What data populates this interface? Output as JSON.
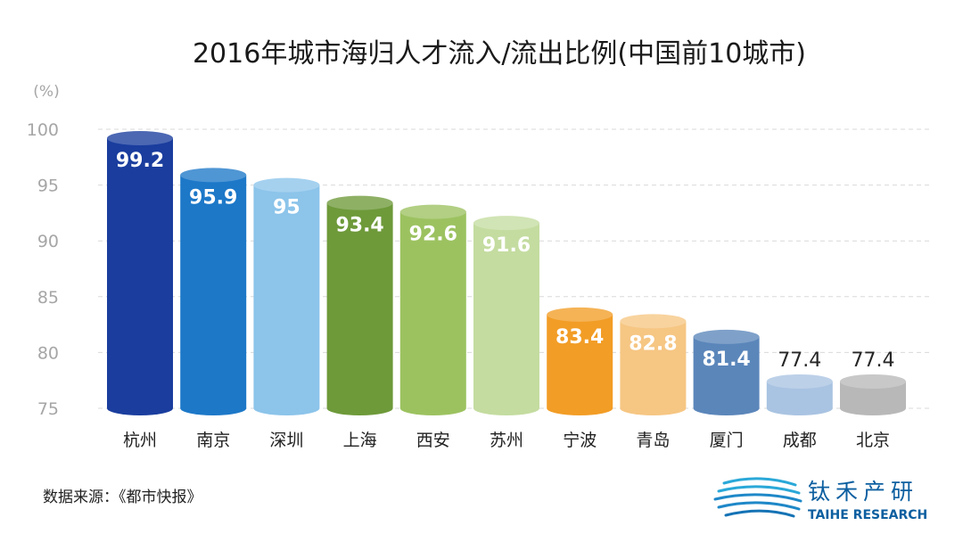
{
  "chart_data": {
    "type": "bar",
    "title": "2016年城市海归人才流入/流出比例(中国前10城市)",
    "unit": "(%)",
    "categories": [
      "杭州",
      "南京",
      "深圳",
      "上海",
      "西安",
      "苏州",
      "宁波",
      "青岛",
      "厦门",
      "成都",
      "北京"
    ],
    "values": [
      99.2,
      95.9,
      95,
      93.4,
      92.6,
      91.6,
      83.4,
      82.8,
      81.4,
      77.4,
      77.4
    ],
    "colors": [
      "#1a3d9e",
      "#1d78c8",
      "#8cc4ea",
      "#6e9a3a",
      "#9cc260",
      "#c4dca0",
      "#f29d26",
      "#f6c683",
      "#5b86ba",
      "#a9c3e2",
      "#b8b8b8"
    ],
    "ylim": [
      75,
      100
    ],
    "yticks": [
      100,
      95,
      90,
      85,
      80,
      75
    ],
    "grid": true,
    "xlabel": "",
    "ylabel": ""
  },
  "footer": {
    "source": "数据来源：《都市快报》"
  },
  "logo": {
    "cn": "钛禾产研",
    "en": "TAIHE RESEARCH"
  }
}
